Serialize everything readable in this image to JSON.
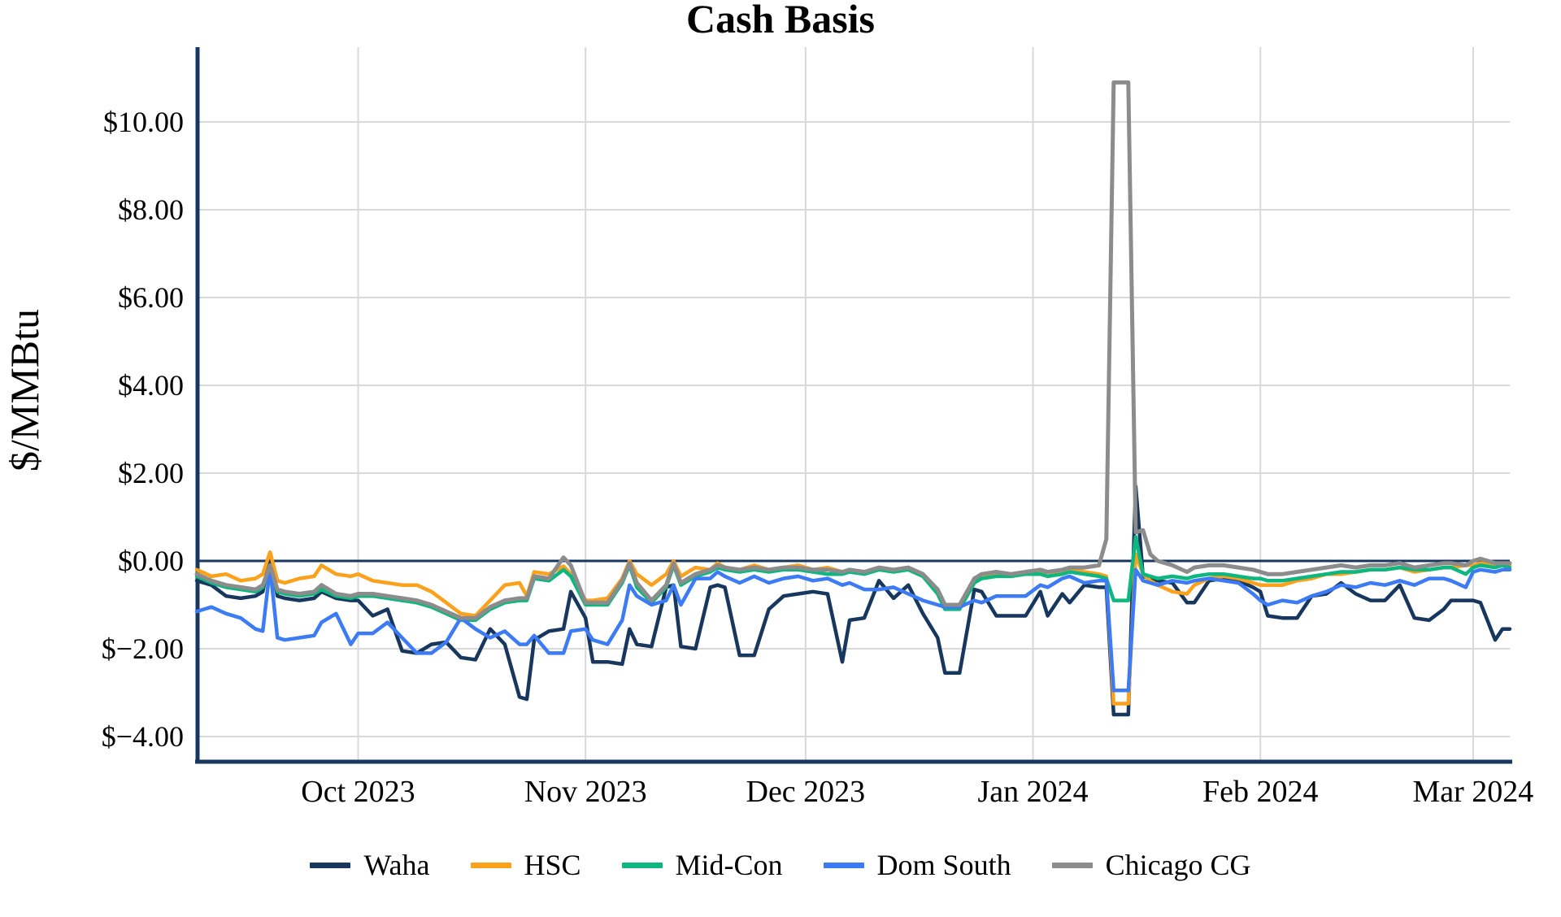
{
  "chart_data": {
    "type": "line",
    "title": "Cash Basis",
    "ylabel": "$/MMBtu",
    "grid": true,
    "legend_position": "bottom",
    "zero_line": true,
    "ylim": [
      -4.5,
      11.7
    ],
    "x_span_days": 179,
    "colors": {
      "axis": "#17375e",
      "gridline": "#d9d9d9",
      "background": "#ffffff"
    },
    "y_ticks": [
      {
        "value": 10,
        "label": "$10.00"
      },
      {
        "value": 8,
        "label": "$8.00"
      },
      {
        "value": 6,
        "label": "$6.00"
      },
      {
        "value": 4,
        "label": "$4.00"
      },
      {
        "value": 2,
        "label": "$2.00"
      },
      {
        "value": 0,
        "label": "$0.00"
      },
      {
        "value": -2,
        "label": "$−2.00"
      },
      {
        "value": -4,
        "label": "$−4.00"
      }
    ],
    "x_ticks": [
      {
        "day": 22,
        "label": "Oct 2023"
      },
      {
        "day": 53,
        "label": "Nov 2023"
      },
      {
        "day": 83,
        "label": "Dec 2023"
      },
      {
        "day": 114,
        "label": "Jan 2024"
      },
      {
        "day": 145,
        "label": "Feb 2024"
      },
      {
        "day": 174,
        "label": "Mar 2024"
      }
    ],
    "series": [
      {
        "name": "Waha",
        "color": "#17375e",
        "width": 4.5
      },
      {
        "name": "HSC",
        "color": "#fca11c",
        "width": 4.5
      },
      {
        "name": "Mid-Con",
        "color": "#0db77f",
        "width": 4.5
      },
      {
        "name": "Dom South",
        "color": "#3d7bf5",
        "width": 4.5
      },
      {
        "name": "Chicago CG",
        "color": "#8c8c8c",
        "width": 5
      }
    ],
    "row_format": [
      "day",
      "Waha",
      "HSC",
      "Mid-Con",
      "Dom South",
      "Chicago CG"
    ],
    "rows": [
      [
        0,
        -0.45,
        -0.2,
        -0.35,
        -1.15,
        -0.3
      ],
      [
        2,
        -0.55,
        -0.35,
        -0.5,
        -1.05,
        -0.45
      ],
      [
        4,
        -0.8,
        -0.3,
        -0.6,
        -1.2,
        -0.55
      ],
      [
        6,
        -0.85,
        -0.45,
        -0.65,
        -1.3,
        -0.6
      ],
      [
        8,
        -0.8,
        -0.4,
        -0.7,
        -1.55,
        -0.65
      ],
      [
        9,
        -0.7,
        -0.3,
        -0.6,
        -1.6,
        -0.55
      ],
      [
        10,
        0.1,
        0.2,
        -0.15,
        -0.15,
        -0.1
      ],
      [
        11,
        -0.8,
        -0.45,
        -0.7,
        -1.75,
        -0.65
      ],
      [
        12,
        -0.85,
        -0.5,
        -0.75,
        -1.8,
        -0.7
      ],
      [
        14,
        -0.9,
        -0.4,
        -0.8,
        -1.75,
        -0.75
      ],
      [
        16,
        -0.85,
        -0.35,
        -0.75,
        -1.7,
        -0.7
      ],
      [
        17,
        -0.7,
        -0.1,
        -0.65,
        -1.4,
        -0.55
      ],
      [
        19,
        -0.85,
        -0.3,
        -0.8,
        -1.2,
        -0.75
      ],
      [
        21,
        -0.9,
        -0.35,
        -0.85,
        -1.9,
        -0.8
      ],
      [
        22,
        -0.9,
        -0.3,
        -0.8,
        -1.65,
        -0.75
      ],
      [
        24,
        -1.25,
        -0.45,
        -0.8,
        -1.65,
        -0.75
      ],
      [
        26,
        -1.1,
        -0.5,
        -0.85,
        -1.4,
        -0.8
      ],
      [
        28,
        -2.05,
        -0.55,
        -0.9,
        -1.75,
        -0.85
      ],
      [
        30,
        -2.1,
        -0.55,
        -0.95,
        -2.1,
        -0.9
      ],
      [
        32,
        -1.9,
        -0.7,
        -1.05,
        -2.1,
        -1.0
      ],
      [
        34,
        -1.85,
        -0.95,
        -1.2,
        -1.85,
        -1.15
      ],
      [
        36,
        -2.2,
        -1.2,
        -1.35,
        -1.3,
        -1.3
      ],
      [
        38,
        -2.25,
        -1.25,
        -1.35,
        -1.55,
        -1.3
      ],
      [
        40,
        -1.55,
        -0.9,
        -1.1,
        -1.75,
        -1.05
      ],
      [
        42,
        -1.9,
        -0.55,
        -0.95,
        -1.6,
        -0.9
      ],
      [
        44,
        -3.1,
        -0.5,
        -0.9,
        -1.9,
        -0.85
      ],
      [
        45,
        -3.15,
        -0.8,
        -0.9,
        -1.9,
        -0.85
      ],
      [
        46,
        -1.8,
        -0.25,
        -0.4,
        -1.7,
        -0.35
      ],
      [
        48,
        -1.6,
        -0.3,
        -0.45,
        -2.1,
        -0.4
      ],
      [
        50,
        -1.55,
        -0.12,
        -0.2,
        -2.1,
        0.08
      ],
      [
        51,
        -0.7,
        -0.3,
        -0.35,
        -1.6,
        -0.1
      ],
      [
        53,
        -1.3,
        -0.9,
        -1.0,
        -1.55,
        -0.95
      ],
      [
        54,
        -2.3,
        -0.9,
        -1.0,
        -1.8,
        -0.95
      ],
      [
        56,
        -2.3,
        -0.85,
        -1.0,
        -1.9,
        -0.95
      ],
      [
        58,
        -2.35,
        -0.4,
        -0.5,
        -1.35,
        -0.45
      ],
      [
        59,
        -1.55,
        0.0,
        -0.1,
        -0.55,
        -0.05
      ],
      [
        60,
        -1.9,
        -0.3,
        -0.6,
        -0.8,
        -0.5
      ],
      [
        62,
        -1.95,
        -0.55,
        -0.95,
        -1.0,
        -0.9
      ],
      [
        64,
        -0.6,
        -0.3,
        -0.6,
        -0.9,
        -0.55
      ],
      [
        65,
        -0.55,
        0.0,
        -0.1,
        -0.55,
        -0.05
      ],
      [
        66,
        -1.95,
        -0.35,
        -0.55,
        -1.0,
        -0.5
      ],
      [
        68,
        -2.0,
        -0.15,
        -0.35,
        -0.4,
        -0.3
      ],
      [
        70,
        -0.6,
        -0.2,
        -0.25,
        -0.4,
        -0.2
      ],
      [
        71,
        -0.55,
        -0.05,
        -0.15,
        -0.25,
        -0.1
      ],
      [
        72,
        -0.6,
        -0.15,
        -0.2,
        -0.35,
        -0.15
      ],
      [
        74,
        -2.15,
        -0.2,
        -0.25,
        -0.5,
        -0.2
      ],
      [
        76,
        -2.15,
        -0.1,
        -0.2,
        -0.35,
        -0.15
      ],
      [
        78,
        -1.1,
        -0.2,
        -0.25,
        -0.5,
        -0.2
      ],
      [
        80,
        -0.8,
        -0.15,
        -0.2,
        -0.4,
        -0.15
      ],
      [
        82,
        -0.75,
        -0.1,
        -0.2,
        -0.35,
        -0.15
      ],
      [
        84,
        -0.7,
        -0.2,
        -0.25,
        -0.45,
        -0.2
      ],
      [
        86,
        -0.75,
        -0.15,
        -0.3,
        -0.4,
        -0.2
      ],
      [
        88,
        -2.3,
        -0.25,
        -0.3,
        -0.55,
        -0.25
      ],
      [
        89,
        -1.35,
        -0.2,
        -0.25,
        -0.5,
        -0.2
      ],
      [
        91,
        -1.3,
        -0.25,
        -0.3,
        -0.65,
        -0.25
      ],
      [
        93,
        -0.45,
        -0.15,
        -0.2,
        -0.65,
        -0.15
      ],
      [
        95,
        -0.85,
        -0.2,
        -0.25,
        -0.6,
        -0.2
      ],
      [
        97,
        -0.55,
        -0.15,
        -0.2,
        -0.75,
        -0.15
      ],
      [
        99,
        -1.2,
        -0.3,
        -0.35,
        -0.9,
        -0.3
      ],
      [
        101,
        -1.75,
        -0.7,
        -0.75,
        -1.0,
        -0.65
      ],
      [
        102,
        -2.55,
        -1.05,
        -1.1,
        -1.05,
        -1.0
      ],
      [
        104,
        -2.55,
        -1.05,
        -1.1,
        -1.05,
        -1.0
      ],
      [
        106,
        -0.65,
        -0.45,
        -0.5,
        -0.9,
        -0.4
      ],
      [
        107,
        -0.7,
        -0.35,
        -0.4,
        -0.95,
        -0.3
      ],
      [
        109,
        -1.25,
        -0.3,
        -0.35,
        -0.8,
        -0.25
      ],
      [
        111,
        -1.25,
        -0.35,
        -0.35,
        -0.8,
        -0.3
      ],
      [
        113,
        -1.25,
        -0.3,
        -0.3,
        -0.8,
        -0.25
      ],
      [
        115,
        -0.7,
        -0.25,
        -0.3,
        -0.55,
        -0.2
      ],
      [
        116,
        -1.25,
        -0.35,
        -0.35,
        -0.6,
        -0.25
      ],
      [
        118,
        -0.75,
        -0.25,
        -0.3,
        -0.4,
        -0.2
      ],
      [
        119,
        -0.95,
        -0.2,
        -0.25,
        -0.35,
        -0.15
      ],
      [
        121,
        -0.55,
        -0.25,
        -0.3,
        -0.5,
        -0.15
      ],
      [
        123,
        -0.6,
        -0.3,
        -0.35,
        -0.45,
        -0.1
      ],
      [
        124,
        -0.6,
        -0.35,
        -0.4,
        -0.45,
        0.5
      ],
      [
        125,
        -3.5,
        -3.25,
        -0.9,
        -2.95,
        10.9
      ],
      [
        126,
        -3.5,
        -3.25,
        -0.9,
        -2.95,
        10.9
      ],
      [
        127,
        -3.5,
        -3.25,
        -0.9,
        -2.95,
        10.9
      ],
      [
        128,
        1.7,
        0.15,
        0.55,
        -0.2,
        0.65
      ],
      [
        129,
        -0.35,
        -0.3,
        -0.3,
        -0.45,
        0.7
      ],
      [
        130,
        -0.4,
        -0.45,
        -0.35,
        -0.5,
        0.15
      ],
      [
        131,
        -0.45,
        -0.55,
        -0.4,
        -0.55,
        0.0
      ],
      [
        133,
        -0.5,
        -0.7,
        -0.35,
        -0.45,
        -0.1
      ],
      [
        135,
        -0.95,
        -0.75,
        -0.4,
        -0.5,
        -0.25
      ],
      [
        136,
        -0.95,
        -0.55,
        -0.35,
        -0.45,
        -0.15
      ],
      [
        138,
        -0.45,
        -0.4,
        -0.3,
        -0.4,
        -0.1
      ],
      [
        140,
        -0.4,
        -0.35,
        -0.3,
        -0.45,
        -0.1
      ],
      [
        142,
        -0.45,
        -0.4,
        -0.35,
        -0.5,
        -0.15
      ],
      [
        144,
        -0.6,
        -0.5,
        -0.4,
        -0.75,
        -0.2
      ],
      [
        145,
        -0.7,
        -0.55,
        -0.4,
        -0.9,
        -0.25
      ],
      [
        146,
        -1.25,
        -0.55,
        -0.45,
        -1.0,
        -0.3
      ],
      [
        148,
        -1.3,
        -0.55,
        -0.45,
        -0.9,
        -0.3
      ],
      [
        150,
        -1.3,
        -0.45,
        -0.4,
        -0.95,
        -0.25
      ],
      [
        152,
        -0.8,
        -0.4,
        -0.35,
        -0.8,
        -0.2
      ],
      [
        154,
        -0.75,
        -0.3,
        -0.3,
        -0.7,
        -0.15
      ],
      [
        156,
        -0.5,
        -0.3,
        -0.25,
        -0.55,
        -0.1
      ],
      [
        158,
        -0.75,
        -0.25,
        -0.25,
        -0.6,
        -0.15
      ],
      [
        160,
        -0.9,
        -0.2,
        -0.2,
        -0.5,
        -0.1
      ],
      [
        162,
        -0.9,
        -0.2,
        -0.2,
        -0.55,
        -0.1
      ],
      [
        164,
        -0.55,
        -0.15,
        -0.15,
        -0.45,
        -0.05
      ],
      [
        166,
        -1.3,
        -0.25,
        -0.2,
        -0.55,
        -0.15
      ],
      [
        168,
        -1.35,
        -0.2,
        -0.2,
        -0.4,
        -0.1
      ],
      [
        170,
        -1.1,
        -0.15,
        -0.15,
        -0.4,
        -0.05
      ],
      [
        171,
        -0.9,
        -0.15,
        -0.15,
        -0.45,
        -0.05
      ],
      [
        173,
        -0.9,
        -0.1,
        -0.3,
        -0.6,
        -0.1
      ],
      [
        174,
        -0.9,
        -0.1,
        -0.15,
        -0.25,
        0.0
      ],
      [
        175,
        -0.95,
        -0.05,
        -0.1,
        -0.2,
        0.05
      ],
      [
        177,
        -1.8,
        -0.1,
        -0.15,
        -0.25,
        -0.05
      ],
      [
        178,
        -1.55,
        -0.1,
        -0.1,
        -0.2,
        -0.05
      ],
      [
        179,
        -1.55,
        -0.1,
        -0.15,
        -0.2,
        -0.05
      ]
    ]
  }
}
